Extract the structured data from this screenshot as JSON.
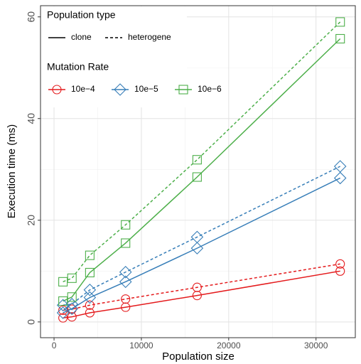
{
  "chart_data": {
    "type": "line",
    "x_label": "Population size",
    "y_label": "Execution time (ms)",
    "x": [
      1024,
      2048,
      4096,
      8192,
      16384,
      32768
    ],
    "xlim": [
      -1550,
      34500
    ],
    "ylim": [
      -3.1,
      62.2
    ],
    "xticks": [
      0,
      10000,
      20000,
      30000
    ],
    "yticks": [
      0,
      20,
      40,
      60
    ],
    "x_minor_ticks": [
      5000,
      15000,
      25000
    ],
    "y_minor_ticks": [
      10,
      30,
      50
    ],
    "grid": true,
    "linetype_legend": {
      "title": "Population type",
      "entries": [
        {
          "label": "clone",
          "dash": "solid"
        },
        {
          "label": "heterogene",
          "dash": "dashed"
        }
      ]
    },
    "color_legend": {
      "title": "Mutation Rate",
      "entries": [
        {
          "label": "10e−4",
          "color": "#e41a1c",
          "marker": "circle"
        },
        {
          "label": "10e−5",
          "color": "#377eb8",
          "marker": "diamond"
        },
        {
          "label": "10e−6",
          "color": "#4daf4a",
          "marker": "square"
        }
      ]
    },
    "legend_position": "top-left",
    "series": [
      {
        "name": "10e−4",
        "dash": "solid",
        "color": "#e41a1c",
        "marker": "circle",
        "values": [
          0.8,
          1.0,
          1.8,
          2.9,
          5.2,
          10.0
        ]
      },
      {
        "name": "10e−4",
        "dash": "dashed",
        "color": "#e41a1c",
        "marker": "circle",
        "values": [
          2.3,
          2.5,
          3.3,
          4.5,
          6.8,
          11.4
        ]
      },
      {
        "name": "10e−5",
        "dash": "solid",
        "color": "#377eb8",
        "marker": "diamond",
        "values": [
          1.8,
          2.6,
          4.8,
          7.9,
          14.5,
          28.3
        ]
      },
      {
        "name": "10e−5",
        "dash": "dashed",
        "color": "#377eb8",
        "marker": "diamond",
        "values": [
          3.3,
          3.5,
          6.3,
          9.8,
          16.7,
          30.6
        ]
      },
      {
        "name": "10e−6",
        "dash": "solid",
        "color": "#4daf4a",
        "marker": "square",
        "values": [
          4.1,
          4.9,
          9.7,
          15.5,
          28.5,
          55.7
        ]
      },
      {
        "name": "10e−6",
        "dash": "dashed",
        "color": "#4daf4a",
        "marker": "square",
        "values": [
          7.9,
          8.6,
          13.1,
          19.1,
          31.9,
          59.0
        ]
      }
    ]
  }
}
